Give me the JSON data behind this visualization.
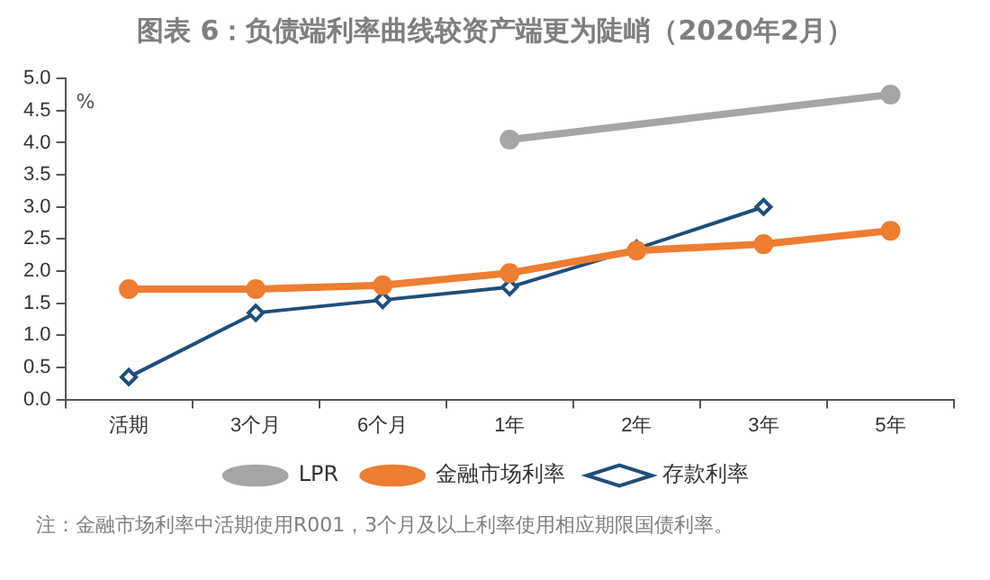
{
  "chart_data": {
    "type": "line",
    "title": "图表 6：负债端利率曲线较资产端更为陡峭（2020年2月）",
    "ylabel": "%",
    "categories": [
      "活期",
      "3个月",
      "6个月",
      "1年",
      "2年",
      "3年",
      "5年"
    ],
    "series": [
      {
        "name": "存款利率",
        "color": "#1f4e79",
        "marker": "diamond",
        "values": [
          0.35,
          1.35,
          1.55,
          1.75,
          2.35,
          3.0,
          null
        ]
      },
      {
        "name": "金融市场利率",
        "color": "#ed7d31",
        "marker": "circle",
        "values": [
          1.72,
          1.72,
          1.78,
          1.97,
          2.32,
          2.42,
          2.63
        ]
      },
      {
        "name": "LPR",
        "color": "#a5a5a5",
        "marker": "circle",
        "values": [
          null,
          null,
          null,
          4.05,
          null,
          null,
          4.75
        ]
      }
    ],
    "ylim": [
      0,
      5
    ],
    "yticks": [
      {
        "value": 0,
        "label": "0.0"
      },
      0.5,
      {
        "value": 1,
        "label": "1.0"
      },
      1.5,
      {
        "value": 2,
        "label": "2.0"
      },
      2.5,
      {
        "value": 3,
        "label": "3.0"
      },
      3.5,
      {
        "value": 4,
        "label": "4.0"
      },
      4.5,
      {
        "value": 5,
        "label": "5.0"
      }
    ],
    "grid": false,
    "legend": "bottom",
    "annotations": [
      "注：金融市场利率中活期使用R001，3个月及以上利率使用相应期限国债利率。"
    ]
  }
}
